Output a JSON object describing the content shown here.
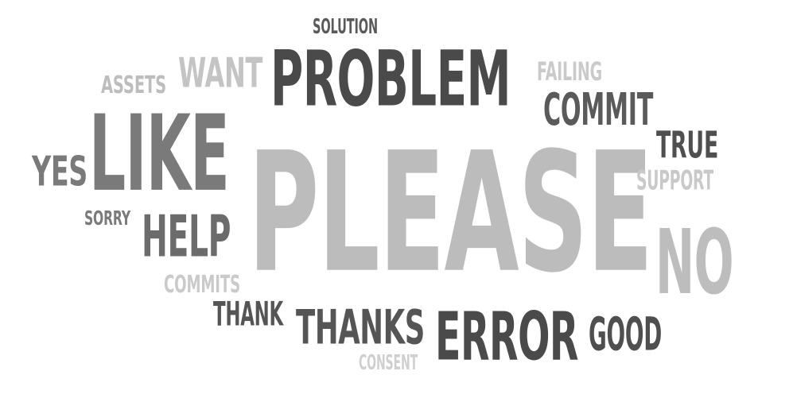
{
  "word_cloud": {
    "words": [
      {
        "text": "PLEASE",
        "color": "#bcbcbc"
      },
      {
        "text": "PROBLEM",
        "color": "#4a4a4a"
      },
      {
        "text": "LIKE",
        "color": "#7a7a7a"
      },
      {
        "text": "ERROR",
        "color": "#4a4a4a"
      },
      {
        "text": "NO",
        "color": "#bdbdbd"
      },
      {
        "text": "THANKS",
        "color": "#555555"
      },
      {
        "text": "HELP",
        "color": "#6b6b6b"
      },
      {
        "text": "COMMIT",
        "color": "#5a5a5a"
      },
      {
        "text": "GOOD",
        "color": "#4f4f4f"
      },
      {
        "text": "TRUE",
        "color": "#4f4f4f"
      },
      {
        "text": "YES",
        "color": "#7a7a7a"
      },
      {
        "text": "WANT",
        "color": "#c4c4c4"
      },
      {
        "text": "THANK",
        "color": "#555555"
      },
      {
        "text": "SUPPORT",
        "color": "#c9c9c9"
      },
      {
        "text": "FAILING",
        "color": "#cacaca"
      },
      {
        "text": "COMMITS",
        "color": "#cacaca"
      },
      {
        "text": "ASSETS",
        "color": "#bdbdbd"
      },
      {
        "text": "SOLUTION",
        "color": "#5a5a5a"
      },
      {
        "text": "SORRY",
        "color": "#7a7a7a"
      },
      {
        "text": "CONSENT",
        "color": "#cfcfcf"
      }
    ]
  }
}
